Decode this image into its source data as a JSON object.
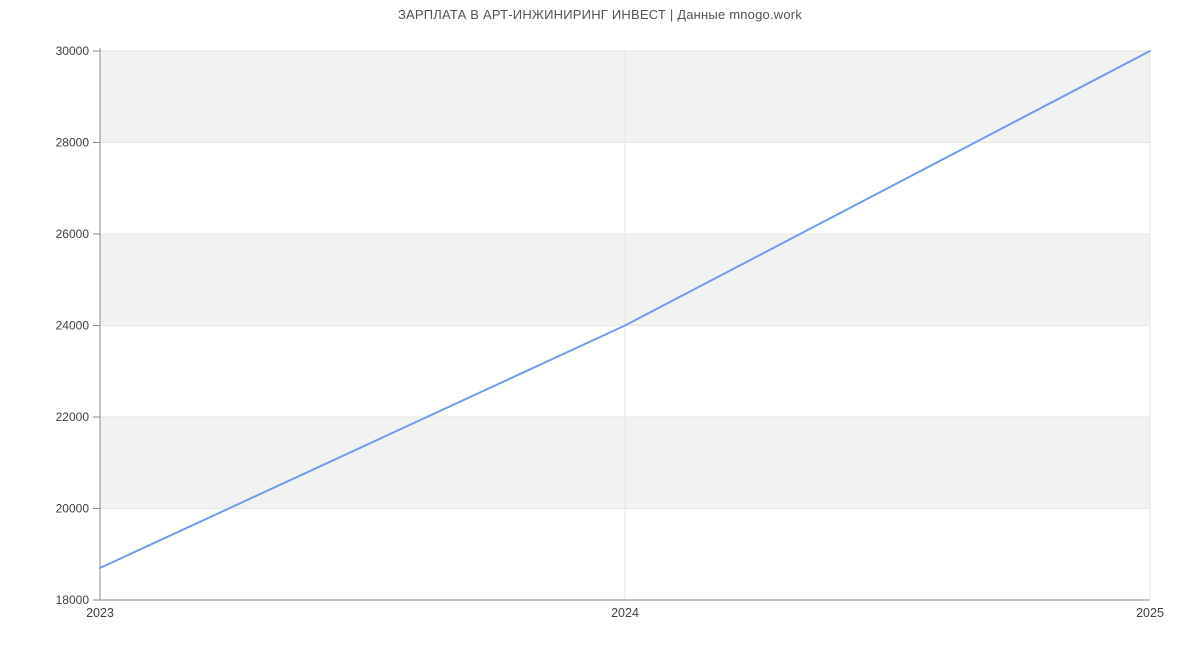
{
  "page": {
    "title": "ЗАРПЛАТА В АРТ-ИНЖИНИРИНГ ИНВЕСТ | Данные mnogo.work"
  },
  "chart_data": {
    "type": "line",
    "title": "ЗАРПЛАТА В АРТ-ИНЖИНИРИНГ ИНВЕСТ | Данные mnogo.work",
    "xlabel": "",
    "ylabel": "",
    "x": [
      2023,
      2024,
      2025
    ],
    "series": [
      {
        "name": "salary",
        "values": [
          18700,
          24000,
          30000
        ]
      }
    ],
    "xlim": [
      2023,
      2025
    ],
    "ylim": [
      18000,
      30000
    ],
    "x_tick_labels": [
      "2023",
      "2024",
      "2025"
    ],
    "y_tick_labels": [
      "18000",
      "20000",
      "22000",
      "24000",
      "26000",
      "28000",
      "30000"
    ],
    "y_tick_values": [
      18000,
      20000,
      22000,
      24000,
      26000,
      28000,
      30000
    ],
    "legend_position": "none",
    "grid": "alternating horizontal bands, light gridlines at each y tick, vertical gridlines at 2024 and 2025",
    "colors": {
      "line": "#6d9eeb",
      "band_gray": "#f2f2f2",
      "band_edge": "#e4e4e4",
      "gridline": "#e6e6e6",
      "axis": "#8a8a8a",
      "tick_text": "#404040",
      "title_text": "#545454",
      "background": "#ffffff"
    }
  }
}
